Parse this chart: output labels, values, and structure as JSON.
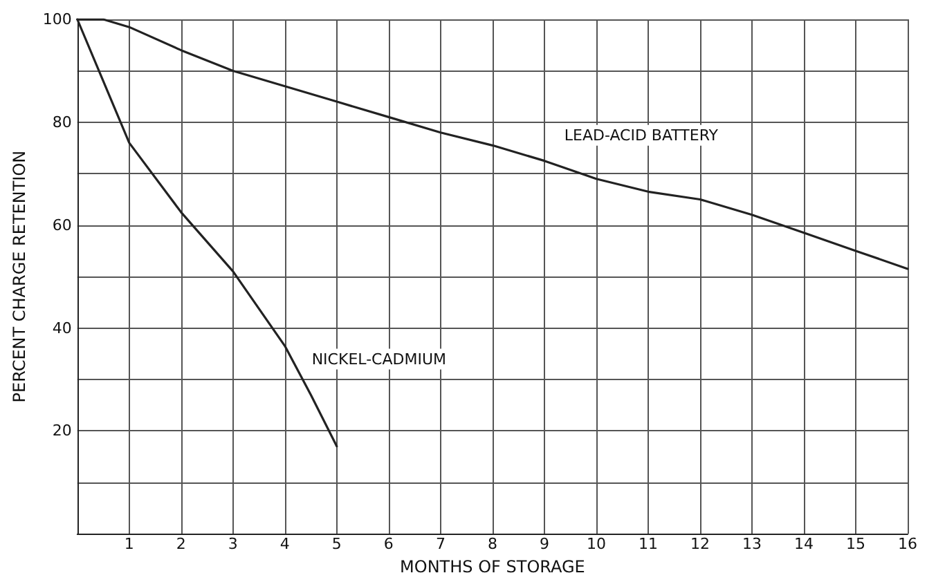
{
  "chart_data": {
    "type": "line",
    "xlabel": "MONTHS OF STORAGE",
    "ylabel": "PERCENT CHARGE RETENTION",
    "xlim": [
      0,
      16
    ],
    "xticks": [
      1,
      2,
      3,
      4,
      5,
      6,
      7,
      8,
      9,
      10,
      11,
      12,
      13,
      14,
      15,
      16
    ],
    "ylim": [
      0,
      100
    ],
    "yticks": [
      {
        "value": 0,
        "label": null
      },
      {
        "value": 10,
        "label": null
      },
      20,
      {
        "value": 30,
        "label": null
      },
      40,
      {
        "value": 50,
        "label": null
      },
      60,
      {
        "value": 70,
        "label": null
      },
      80,
      {
        "value": 90,
        "label": null
      },
      100
    ],
    "grid": true,
    "marker": "none",
    "line_style": "solid",
    "series": [
      {
        "name": "LEAD-ACID BATTERY",
        "color": "#222222",
        "x": [
          0,
          0.5,
          1,
          2,
          3,
          4,
          5,
          6,
          7,
          8,
          9,
          10,
          11,
          12,
          13,
          14,
          15,
          16
        ],
        "values": [
          100,
          100,
          98.5,
          94,
          90,
          87,
          84,
          81,
          78,
          75.5,
          72.5,
          69,
          66.5,
          65,
          62,
          58.5,
          55,
          51.5
        ]
      },
      {
        "name": "NICKEL-CADMIUM",
        "color": "#222222",
        "x": [
          0,
          0.5,
          1,
          2,
          3,
          4,
          4.5,
          5
        ],
        "values": [
          100,
          88,
          76,
          62.5,
          51,
          36.5,
          27,
          17
        ]
      }
    ]
  }
}
